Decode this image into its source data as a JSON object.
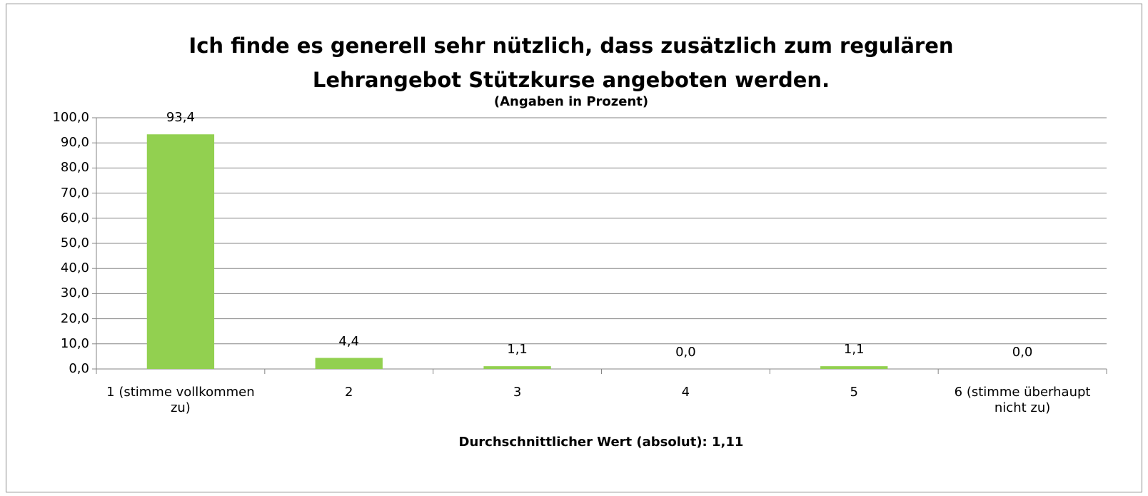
{
  "chart_data": {
    "type": "bar",
    "title": "Ich finde es generell sehr nützlich, dass zusätzlich zum regulären Lehrangebot Stützkurse angeboten werden.",
    "subtitle": "(Angaben in Prozent)",
    "x_label": "Durchschnittlicher Wert (absolut): 1,11",
    "categories": [
      "1 (stimme vollkommen zu)",
      "2",
      "3",
      "4",
      "5",
      "6 (stimme überhaupt nicht zu)"
    ],
    "values": [
      93.4,
      4.4,
      1.1,
      0.0,
      1.1,
      0.0
    ],
    "value_labels": [
      "93,4",
      "4,4",
      "1,1",
      "0,0",
      "1,1",
      "0,0"
    ],
    "color": "#92d050",
    "ylim": [
      0,
      100
    ],
    "yticks": [
      {
        "value": 0,
        "label": "0,0"
      },
      {
        "value": 10,
        "label": "10,0"
      },
      {
        "value": 20,
        "label": "20,0"
      },
      {
        "value": 30,
        "label": "30,0"
      },
      {
        "value": 40,
        "label": "40,0"
      },
      {
        "value": 50,
        "label": "50,0"
      },
      {
        "value": 60,
        "label": "60,0"
      },
      {
        "value": 70,
        "label": "70,0"
      },
      {
        "value": 80,
        "label": "80,0"
      },
      {
        "value": 90,
        "label": "90,0"
      },
      {
        "value": 100,
        "label": "100,0"
      }
    ],
    "grid": true
  }
}
